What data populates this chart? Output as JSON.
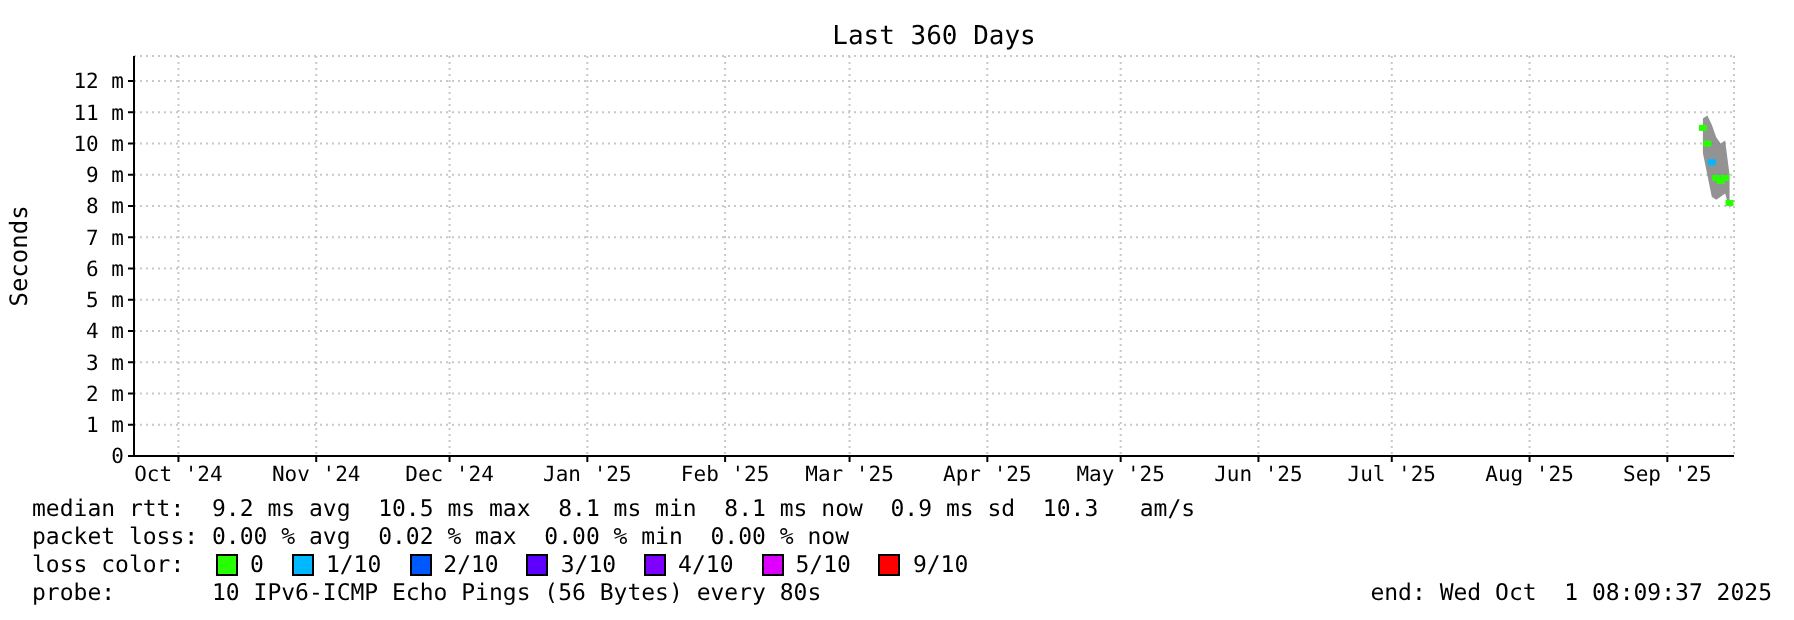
{
  "chart_data": {
    "type": "scatter",
    "title": "Last 360 Days",
    "ylabel": "Seconds",
    "legend_title": "loss color:",
    "legend": "bottom",
    "grid": true,
    "marker": "square",
    "x": [
      "2025-09-24",
      "2025-09-25",
      "2025-09-26",
      "2025-09-27",
      "2025-09-28",
      "2025-09-29",
      "2025-09-30"
    ],
    "xlim": [
      "2024-10-06",
      "2025-10-01"
    ],
    "xticks": [
      {
        "value": "2024-10-16",
        "label": "Oct '24"
      },
      {
        "value": "2024-11-16",
        "label": "Nov '24"
      },
      {
        "value": "2024-12-16",
        "label": "Dec '24"
      },
      {
        "value": "2025-01-16",
        "label": "Jan '25"
      },
      {
        "value": "2025-02-16",
        "label": "Feb '25"
      },
      {
        "value": "2025-03-16",
        "label": "Mar '25"
      },
      {
        "value": "2025-04-16",
        "label": "Apr '25"
      },
      {
        "value": "2025-05-16",
        "label": "May '25"
      },
      {
        "value": "2025-06-16",
        "label": "Jun '25"
      },
      {
        "value": "2025-07-16",
        "label": "Jul '25"
      },
      {
        "value": "2025-08-16",
        "label": "Aug '25"
      },
      {
        "value": "2025-09-16",
        "label": "Sep '25"
      }
    ],
    "ylim": [
      0,
      12.8
    ],
    "yticks": [
      0,
      {
        "value": 1,
        "label": "1 m"
      },
      {
        "value": 2,
        "label": "2 m"
      },
      {
        "value": 3,
        "label": "3 m"
      },
      {
        "value": 4,
        "label": "4 m"
      },
      {
        "value": 5,
        "label": "5 m"
      },
      {
        "value": 6,
        "label": "6 m"
      },
      {
        "value": 7,
        "label": "7 m"
      },
      {
        "value": 8,
        "label": "8 m"
      },
      {
        "value": 9,
        "label": "9 m"
      },
      {
        "value": 10,
        "label": "10 m"
      },
      {
        "value": 11,
        "label": "11 m"
      },
      {
        "value": 12,
        "label": "12 m"
      }
    ],
    "series": [
      {
        "type": "area",
        "color": "#808080",
        "values": [
          null,
          null,
          null,
          null,
          null,
          null,
          null
        ],
        "lower": [
          9.7,
          9.0,
          8.3,
          8.2,
          8.3,
          8.4,
          7.9
        ],
        "upper": [
          10.8,
          10.9,
          10.6,
          10.2,
          10.0,
          10.1,
          9.0
        ]
      },
      {
        "name": "0",
        "color": "#26ff00",
        "values": [
          10.5,
          10.0,
          null,
          8.9,
          8.8,
          8.9,
          8.1
        ]
      },
      {
        "name": "1/10",
        "color": "#00b8ff",
        "values": [
          null,
          null,
          9.4,
          null,
          null,
          null,
          null
        ]
      },
      {
        "name": "2/10",
        "color": "#0059ff",
        "values": [
          null,
          null,
          null,
          null,
          null,
          null,
          null
        ]
      },
      {
        "name": "3/10",
        "color": "#5e00ff",
        "values": [
          null,
          null,
          null,
          null,
          null,
          null,
          null
        ]
      },
      {
        "name": "4/10",
        "color": "#7e00ff",
        "values": [
          null,
          null,
          null,
          null,
          null,
          null,
          null
        ]
      },
      {
        "name": "5/10",
        "color": "#dd00ff",
        "values": [
          null,
          null,
          null,
          null,
          null,
          null,
          null
        ]
      },
      {
        "name": "9/10",
        "color": "#ff0000",
        "values": [
          null,
          null,
          null,
          null,
          null,
          null,
          null
        ]
      }
    ],
    "annotations": [
      "median rtt:  9.2 ms avg  10.5 ms max  8.1 ms min  8.1 ms now  0.9 ms sd  10.3   am/s",
      "packet loss: 0.00 % avg  0.02 % max  0.00 % min  0.00 % now",
      "probe:       10 IPv6-ICMP Echo Pings (56 Bytes) every 80s",
      "end: Wed Oct  1 08:09:37 2025"
    ]
  }
}
